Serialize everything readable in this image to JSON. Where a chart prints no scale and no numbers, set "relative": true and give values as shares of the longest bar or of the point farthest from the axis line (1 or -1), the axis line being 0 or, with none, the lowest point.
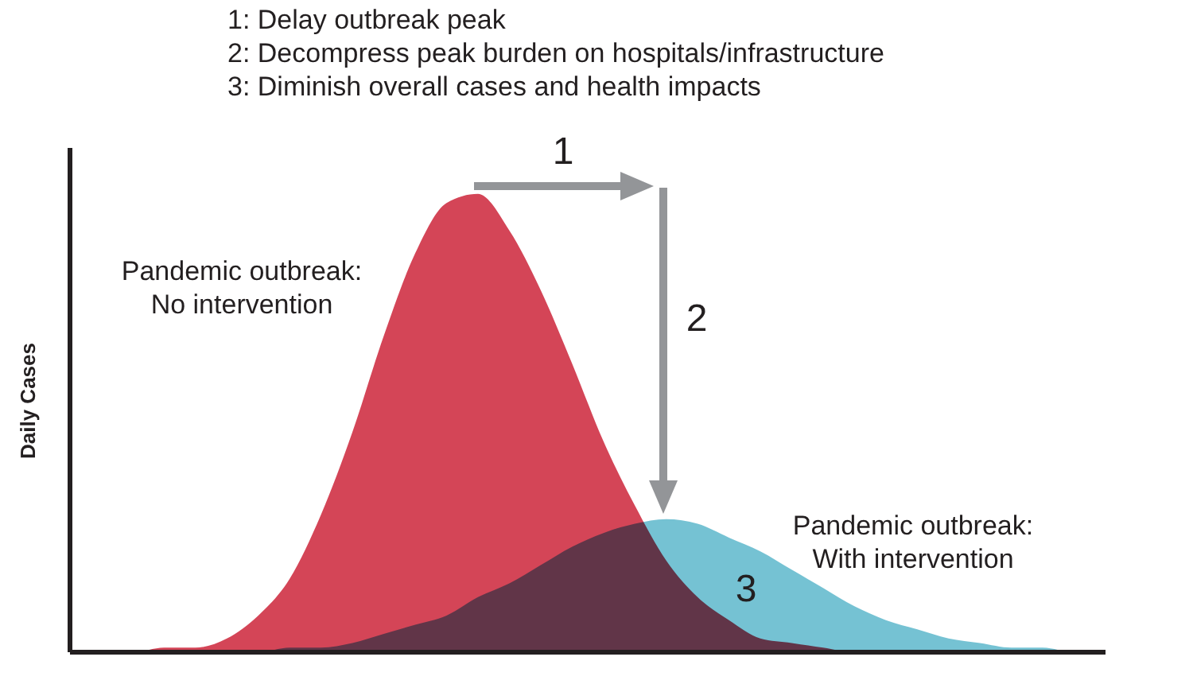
{
  "chart_data": {
    "type": "area",
    "relative": true,
    "ylabel": "Daily Cases",
    "categories": [
      null,
      null,
      null,
      null,
      null,
      null,
      null,
      null,
      null,
      null,
      null,
      null,
      null,
      null,
      null,
      null,
      null,
      null,
      null,
      null,
      null,
      null,
      null,
      null,
      null,
      null,
      null,
      null,
      null,
      null,
      null,
      null,
      null,
      null
    ],
    "series": [
      {
        "name": "Pandemic outbreak: No intervention",
        "color": "#cc2439",
        "values": [
          0,
          0,
          0,
          0.01,
          0.01,
          0.03,
          0.08,
          0.16,
          0.3,
          0.48,
          0.69,
          0.87,
          0.98,
          1,
          0.92,
          0.79,
          0.63,
          0.46,
          0.32,
          0.2,
          0.12,
          0.07,
          0.03,
          0.02,
          0.01,
          0,
          0,
          0,
          0,
          0,
          0,
          0,
          0,
          0
        ]
      },
      {
        "name": "Pandemic outbreak: With intervention",
        "color": "#5db7cb",
        "values": [
          0,
          0,
          0,
          0,
          0,
          0,
          0,
          0.01,
          0.01,
          0.02,
          0.04,
          0.06,
          0.08,
          0.12,
          0.15,
          0.19,
          0.23,
          0.26,
          0.28,
          0.29,
          0.28,
          0.25,
          0.22,
          0.18,
          0.14,
          0.1,
          0.07,
          0.05,
          0.03,
          0.02,
          0.01,
          0.01,
          0,
          0
        ]
      }
    ],
    "annotations": [
      "1: Delay outbreak peak",
      "2: Decompress peak burden on hospitals/infrastructure",
      "3: Diminish overall cases and health impacts",
      "1",
      "2",
      "3"
    ]
  }
}
